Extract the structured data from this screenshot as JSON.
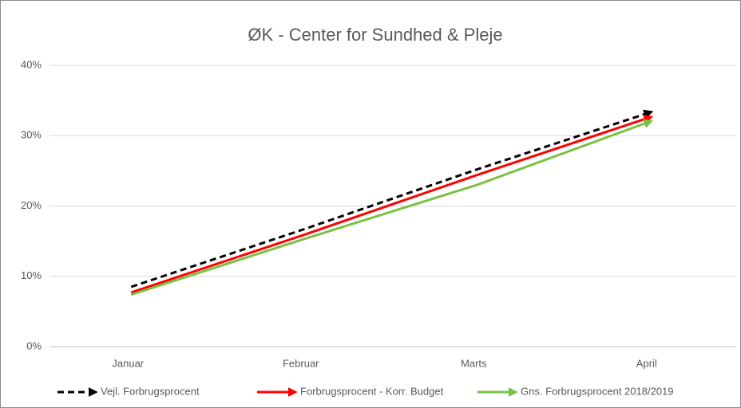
{
  "chart_data": {
    "type": "line",
    "title": "ØK - Center for Sundhed & Pleje",
    "categories": [
      "Januar",
      "Februar",
      "Marts",
      "April"
    ],
    "series": [
      {
        "name": "Vejl. Forbrugsprocent",
        "color": "#000000",
        "dashed": true,
        "values": [
          8.5,
          16.7,
          25.2,
          33.3
        ]
      },
      {
        "name": "Forbrugsprocent  - Korr. Budget",
        "color": "#ff0000",
        "values": [
          7.7,
          15.9,
          24.4,
          32.6
        ]
      },
      {
        "name": "Gns. Forbrugsprocent 2018/2019",
        "color": "#7ac143",
        "values": [
          7.4,
          15.3,
          23.0,
          32.0
        ]
      }
    ],
    "ylim": [
      0,
      40
    ],
    "yticks": [
      {
        "value": 0,
        "label": "0%"
      },
      {
        "value": 10,
        "label": "10%"
      },
      {
        "value": 20,
        "label": "20%"
      },
      {
        "value": 30,
        "label": "30%"
      },
      {
        "value": 40,
        "label": "40%"
      }
    ],
    "grid": true,
    "legend": "bottom"
  }
}
